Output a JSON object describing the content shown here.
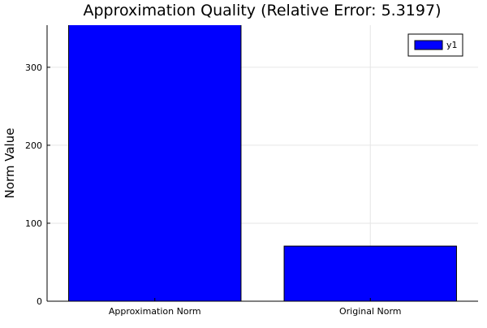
{
  "chart_data": {
    "type": "bar",
    "title": "Approximation Quality (Relative Error: 5.3197)",
    "xlabel": "",
    "ylabel": "Norm Value",
    "categories": [
      "Approximation Norm",
      "Original Norm"
    ],
    "series": [
      {
        "name": "y1",
        "values": [
          376.0,
          70.7
        ]
      }
    ],
    "ylim": [
      0,
      354
    ],
    "yticks": [
      0,
      100,
      200,
      300
    ],
    "ytick_labels": [
      "0",
      "100",
      "200",
      "300"
    ],
    "grid": true,
    "legend_position": "top-right",
    "colors": {
      "bar": "#0000ff",
      "bar_edge": "#000000",
      "grid": "#e6e6e6",
      "axis": "#000000"
    }
  }
}
